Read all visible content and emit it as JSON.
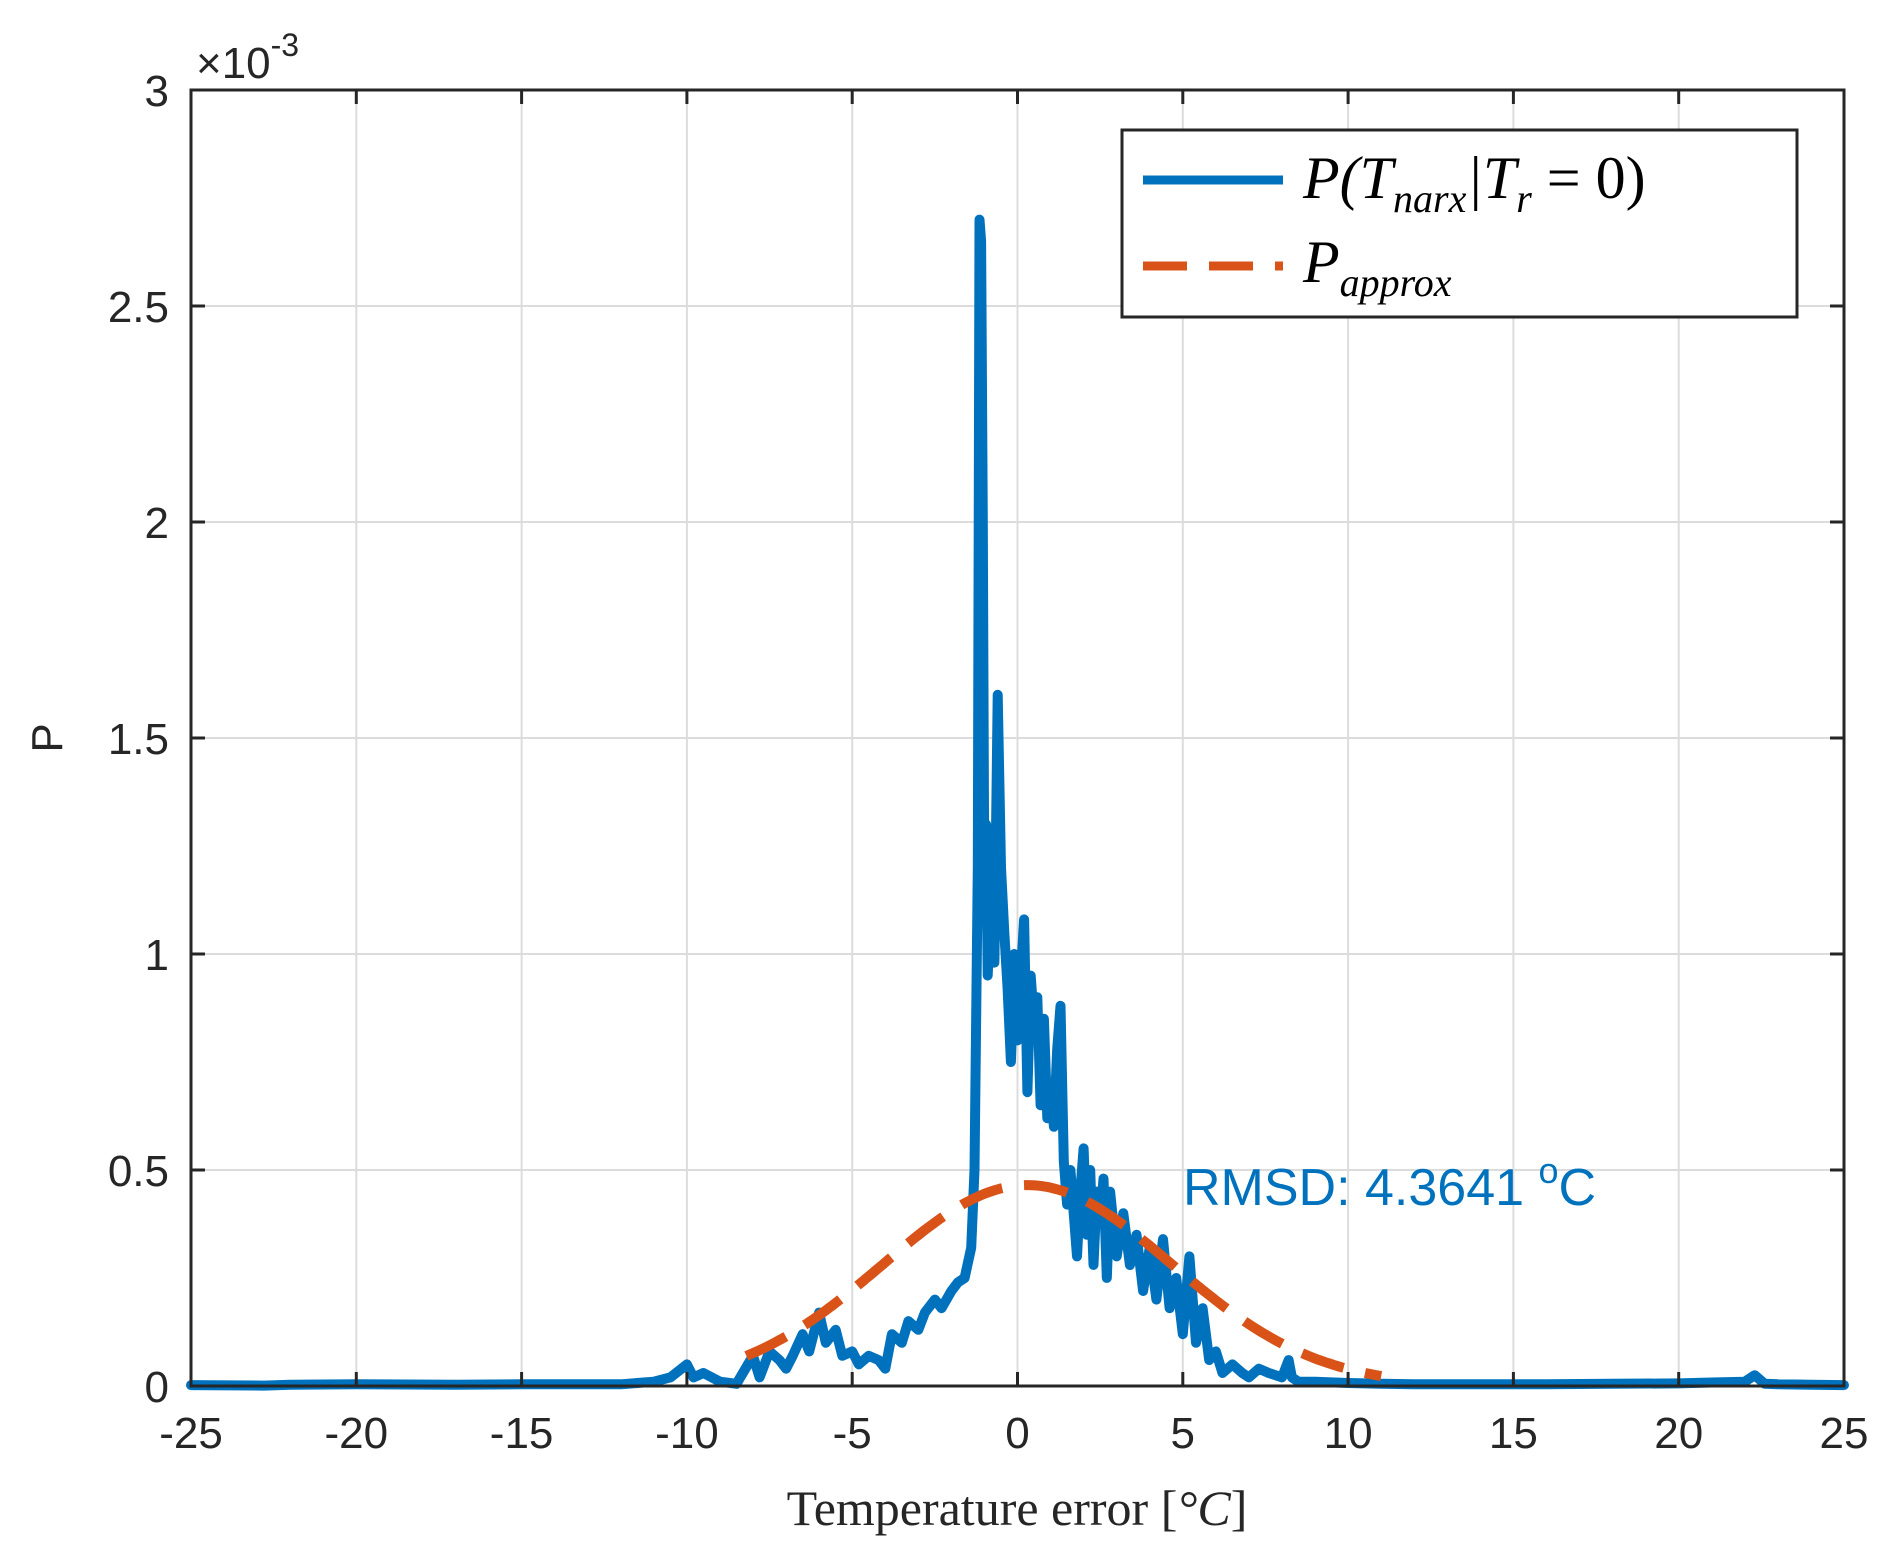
{
  "chart_data": {
    "type": "line",
    "title": "",
    "xlabel": "Temperature error [°C]",
    "xlabel_parts": {
      "text": "Temperature error [",
      "unit": "°C",
      "close": "]"
    },
    "ylabel": "P",
    "y_exponent_label": {
      "base": "×10",
      "exp": "-3"
    },
    "xlim": [
      -25,
      25
    ],
    "ylim": [
      0,
      3
    ],
    "grid": true,
    "xticks": [
      -25,
      -20,
      -15,
      -10,
      -5,
      0,
      5,
      10,
      15,
      20,
      25
    ],
    "xtick_labels": [
      "-25",
      "-20",
      "-15",
      "-10",
      "-5",
      "0",
      "5",
      "10",
      "15",
      "20",
      "25"
    ],
    "yticks": [
      0,
      0.5,
      1,
      1.5,
      2,
      2.5,
      3
    ],
    "ytick_labels": [
      "0",
      "0.5",
      "1",
      "1.5",
      "2",
      "2.5",
      "3"
    ],
    "legend_position": "top-right",
    "legend": [
      {
        "name": "P(T_narx | T_r = 0)",
        "main": "P(T",
        "sub": "narx",
        "rest": "|T",
        "sub2": "r",
        "tail": " = 0)"
      },
      {
        "name": "P_approx",
        "main": "P",
        "sub": "approx"
      }
    ],
    "annotation": {
      "text": "RMSD: 4.3641 ",
      "sup": "o",
      "unit": "C",
      "x": 5,
      "y": 0.46
    },
    "series": [
      {
        "name": "P(T_narx|T_r=0)",
        "color": "#0072BD",
        "style": "solid",
        "x": [
          -25,
          -22.8,
          -22,
          -20,
          -17,
          -15,
          -12,
          -11,
          -10.5,
          -10,
          -9.8,
          -9.5,
          -9,
          -8.5,
          -8.0,
          -7.8,
          -7.5,
          -7.2,
          -7.0,
          -6.8,
          -6.5,
          -6.3,
          -6.0,
          -5.8,
          -5.5,
          -5.3,
          -5.0,
          -4.8,
          -4.5,
          -4.2,
          -4.0,
          -3.8,
          -3.5,
          -3.3,
          -3.0,
          -2.8,
          -2.5,
          -2.3,
          -2.0,
          -1.8,
          -1.6,
          -1.4,
          -1.3,
          -1.2,
          -1.15,
          -1.1,
          -1.05,
          -1.0,
          -0.95,
          -0.9,
          -0.85,
          -0.8,
          -0.7,
          -0.6,
          -0.5,
          -0.4,
          -0.3,
          -0.2,
          -0.1,
          0,
          0.1,
          0.2,
          0.3,
          0.4,
          0.5,
          0.6,
          0.7,
          0.8,
          0.9,
          1.0,
          1.1,
          1.2,
          1.3,
          1.4,
          1.5,
          1.6,
          1.7,
          1.8,
          1.9,
          2.0,
          2.1,
          2.2,
          2.3,
          2.4,
          2.5,
          2.6,
          2.7,
          2.8,
          3.0,
          3.2,
          3.4,
          3.6,
          3.8,
          4.0,
          4.2,
          4.4,
          4.6,
          4.8,
          5.0,
          5.2,
          5.4,
          5.6,
          5.8,
          6.0,
          6.2,
          6.5,
          6.8,
          7.0,
          7.3,
          7.6,
          8.0,
          8.2,
          8.3,
          8.5,
          9,
          10,
          11,
          12,
          14,
          16,
          18,
          20,
          21,
          22,
          22.3,
          22.6,
          23,
          24,
          25
        ],
        "y": [
          0.002,
          0.001,
          0.003,
          0.004,
          0.003,
          0.004,
          0.004,
          0.01,
          0.02,
          0.05,
          0.02,
          0.03,
          0.01,
          0.005,
          0.07,
          0.02,
          0.08,
          0.06,
          0.04,
          0.07,
          0.12,
          0.08,
          0.17,
          0.1,
          0.13,
          0.07,
          0.08,
          0.05,
          0.07,
          0.06,
          0.04,
          0.12,
          0.1,
          0.15,
          0.13,
          0.17,
          0.2,
          0.18,
          0.22,
          0.24,
          0.25,
          0.32,
          0.5,
          1.2,
          2.7,
          2.65,
          2.0,
          1.1,
          1.3,
          0.95,
          1.05,
          1.2,
          0.98,
          1.6,
          1.2,
          1.05,
          0.92,
          0.75,
          1.0,
          0.8,
          0.95,
          1.08,
          0.68,
          0.95,
          0.84,
          0.9,
          0.65,
          0.85,
          0.62,
          0.7,
          0.6,
          0.78,
          0.88,
          0.52,
          0.42,
          0.5,
          0.4,
          0.3,
          0.45,
          0.55,
          0.35,
          0.5,
          0.28,
          0.45,
          0.38,
          0.48,
          0.25,
          0.45,
          0.3,
          0.4,
          0.28,
          0.35,
          0.22,
          0.32,
          0.2,
          0.34,
          0.18,
          0.25,
          0.12,
          0.3,
          0.1,
          0.18,
          0.06,
          0.08,
          0.03,
          0.05,
          0.03,
          0.02,
          0.04,
          0.03,
          0.02,
          0.06,
          0.02,
          0.01,
          0.01,
          0.007,
          0.005,
          0.004,
          0.004,
          0.004,
          0.005,
          0.006,
          0.008,
          0.01,
          0.025,
          0.005,
          0.004,
          0.003,
          0.002
        ]
      },
      {
        "name": "P_approx",
        "color": "#D95319",
        "style": "dashed",
        "mean": 0.3,
        "sd": 4.3641,
        "peak": 0.465
      }
    ]
  }
}
